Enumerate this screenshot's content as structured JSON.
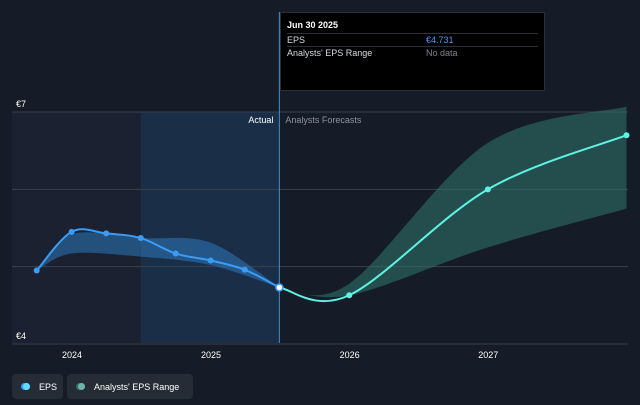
{
  "chart_data": {
    "type": "line",
    "currency": "€",
    "ylim": [
      4,
      7
    ],
    "y_ticks": [
      {
        "value": 7,
        "label": "€7"
      },
      {
        "value": 4,
        "label": "€4"
      }
    ],
    "x_ticks": [
      "2024",
      "2025",
      "2026",
      "2027"
    ],
    "region_labels": {
      "actual": "Actual",
      "forecast": "Analysts Forecasts"
    },
    "series": [
      {
        "name": "EPS",
        "color": "#3a9cf5",
        "points": [
          {
            "x": "2023-09-30",
            "y": 4.95
          },
          {
            "x": "2023-12-31",
            "y": 5.45
          },
          {
            "x": "2024-03-31",
            "y": 5.43
          },
          {
            "x": "2024-06-30",
            "y": 5.37
          },
          {
            "x": "2024-09-30",
            "y": 5.17
          },
          {
            "x": "2024-12-31",
            "y": 5.08
          },
          {
            "x": "2025-03-31",
            "y": 4.96
          },
          {
            "x": "2025-06-30",
            "y": 4.731
          }
        ]
      },
      {
        "name": "EPS Forecast",
        "color": "#5ef2e2",
        "points": [
          {
            "x": "2025-06-30",
            "y": 4.731
          },
          {
            "x": "2025-12-31",
            "y": 4.63
          },
          {
            "x": "2026-12-31",
            "y": 6.0
          },
          {
            "x": "2027-12-31",
            "y": 6.7
          }
        ]
      },
      {
        "name": "Analysts' EPS Range",
        "color": "#2f6f69",
        "range": [
          {
            "x": "2023-09-30",
            "low": 4.95,
            "high": 4.95
          },
          {
            "x": "2023-12-31",
            "low": 5.17,
            "high": 5.42
          },
          {
            "x": "2024-06-30",
            "low": 5.13,
            "high": 5.37
          },
          {
            "x": "2024-12-31",
            "low": 5.02,
            "high": 5.31
          },
          {
            "x": "2025-06-30",
            "low": 4.731,
            "high": 4.731
          },
          {
            "x": "2025-12-31",
            "low": 4.63,
            "high": 4.78
          },
          {
            "x": "2026-12-31",
            "low": 5.25,
            "high": 6.6
          },
          {
            "x": "2027-12-31",
            "low": 5.75,
            "high": 7.07
          }
        ]
      }
    ]
  },
  "tooltip": {
    "date": "Jun 30 2025",
    "eps_label": "EPS",
    "eps_value": "€4.731",
    "range_label": "Analysts' EPS Range",
    "range_value": "No data"
  },
  "legend": {
    "eps": "EPS",
    "range": "Analysts' EPS Range"
  },
  "colors": {
    "background": "#161c27",
    "past_shade": "#1b2130",
    "highlight_shade": "#1a3a5c",
    "eps_line": "#3a9cf5",
    "forecast_line": "#5ef2e2",
    "range_fill": "#2f6f69"
  }
}
